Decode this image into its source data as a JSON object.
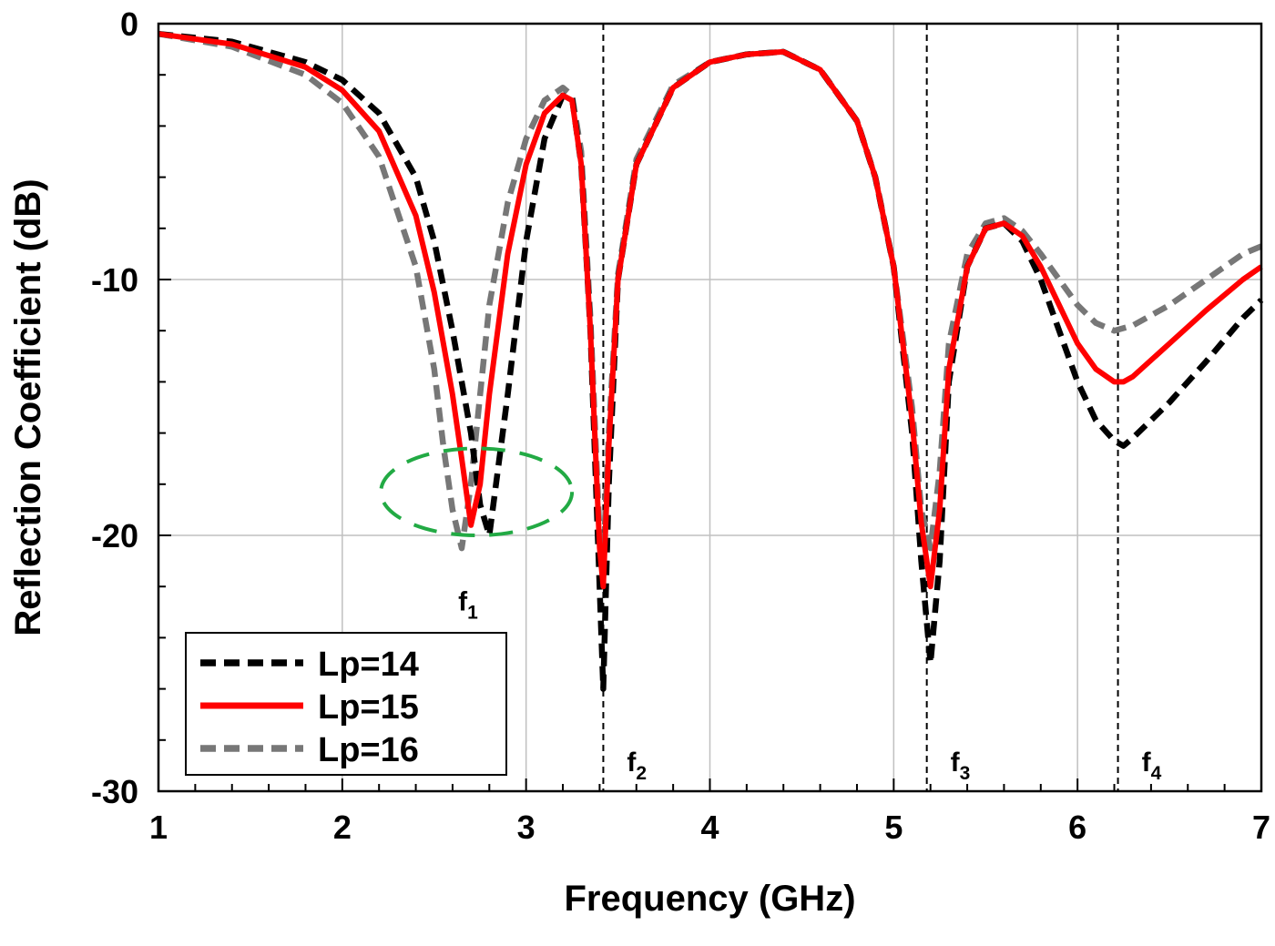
{
  "chart_data": {
    "type": "line",
    "title": "",
    "xlabel": "Frequency (GHz)",
    "ylabel": "Reflection Coefficient (dB)",
    "xlim": [
      1,
      7
    ],
    "ylim": [
      -30,
      0
    ],
    "xticks": [
      1,
      2,
      3,
      4,
      5,
      6,
      7
    ],
    "yticks": [
      0,
      -10,
      -20,
      -30
    ],
    "xtick_labels": [
      "1",
      "2",
      "3",
      "4",
      "5",
      "6",
      "7"
    ],
    "ytick_labels": [
      "0",
      "-10",
      "-20",
      "-30"
    ],
    "grid": true,
    "legend_position": "bottom-left",
    "series": [
      {
        "name": "Lp=14",
        "color": "#000000",
        "dash": "dashed",
        "x": [
          1.0,
          1.4,
          1.8,
          2.0,
          2.2,
          2.4,
          2.5,
          2.6,
          2.7,
          2.75,
          2.8,
          2.9,
          3.0,
          3.1,
          3.2,
          3.25,
          3.3,
          3.35,
          3.4,
          3.42,
          3.45,
          3.5,
          3.6,
          3.8,
          4.0,
          4.2,
          4.4,
          4.6,
          4.8,
          4.9,
          5.0,
          5.1,
          5.15,
          5.2,
          5.25,
          5.3,
          5.4,
          5.5,
          5.6,
          5.7,
          5.8,
          5.9,
          6.0,
          6.1,
          6.2,
          6.25,
          6.3,
          6.5,
          6.7,
          6.9,
          7.0
        ],
        "y": [
          -0.4,
          -0.7,
          -1.5,
          -2.2,
          -3.5,
          -6.0,
          -8.5,
          -12.0,
          -16.0,
          -18.8,
          -20.0,
          -14.5,
          -8.5,
          -4.5,
          -2.8,
          -2.9,
          -5.5,
          -12.0,
          -22.0,
          -26.0,
          -18.0,
          -10.0,
          -5.5,
          -2.5,
          -1.5,
          -1.2,
          -1.1,
          -1.8,
          -3.8,
          -6.0,
          -9.5,
          -16.0,
          -21.0,
          -25.0,
          -21.0,
          -14.0,
          -9.5,
          -8.0,
          -7.8,
          -8.5,
          -10.0,
          -12.0,
          -14.0,
          -15.5,
          -16.3,
          -16.5,
          -16.2,
          -14.8,
          -13.2,
          -11.5,
          -10.8
        ]
      },
      {
        "name": "Lp=15",
        "color": "#ff0000",
        "dash": "solid",
        "x": [
          1.0,
          1.4,
          1.8,
          2.0,
          2.2,
          2.4,
          2.5,
          2.6,
          2.65,
          2.7,
          2.75,
          2.8,
          2.9,
          3.0,
          3.1,
          3.2,
          3.25,
          3.3,
          3.35,
          3.4,
          3.42,
          3.45,
          3.5,
          3.6,
          3.8,
          4.0,
          4.2,
          4.4,
          4.6,
          4.8,
          4.9,
          5.0,
          5.1,
          5.15,
          5.2,
          5.25,
          5.3,
          5.4,
          5.5,
          5.6,
          5.7,
          5.8,
          5.9,
          6.0,
          6.1,
          6.2,
          6.25,
          6.3,
          6.5,
          6.7,
          6.9,
          7.0
        ],
        "y": [
          -0.4,
          -0.8,
          -1.7,
          -2.6,
          -4.2,
          -7.5,
          -10.5,
          -14.5,
          -17.0,
          -19.6,
          -18.0,
          -14.5,
          -9.0,
          -5.5,
          -3.5,
          -2.8,
          -3.0,
          -5.5,
          -12.0,
          -20.5,
          -22.0,
          -16.5,
          -10.0,
          -5.5,
          -2.5,
          -1.5,
          -1.2,
          -1.1,
          -1.8,
          -3.8,
          -6.0,
          -9.5,
          -15.5,
          -19.5,
          -22.0,
          -19.0,
          -13.5,
          -9.5,
          -8.0,
          -7.8,
          -8.3,
          -9.5,
          -11.0,
          -12.5,
          -13.5,
          -14.0,
          -14.0,
          -13.8,
          -12.5,
          -11.2,
          -10.0,
          -9.5
        ]
      },
      {
        "name": "Lp=16",
        "color": "#777777",
        "dash": "dashed",
        "x": [
          1.0,
          1.4,
          1.8,
          2.0,
          2.2,
          2.4,
          2.5,
          2.55,
          2.6,
          2.65,
          2.7,
          2.75,
          2.8,
          2.9,
          3.0,
          3.1,
          3.2,
          3.25,
          3.3,
          3.35,
          3.4,
          3.42,
          3.45,
          3.5,
          3.6,
          3.8,
          4.0,
          4.2,
          4.4,
          4.6,
          4.8,
          4.9,
          5.0,
          5.1,
          5.15,
          5.2,
          5.25,
          5.3,
          5.4,
          5.5,
          5.6,
          5.7,
          5.8,
          5.9,
          6.0,
          6.1,
          6.2,
          6.3,
          6.5,
          6.7,
          6.9,
          7.0
        ],
        "y": [
          -0.4,
          -0.9,
          -2.0,
          -3.1,
          -5.2,
          -9.5,
          -13.5,
          -16.5,
          -19.0,
          -20.5,
          -18.0,
          -14.5,
          -11.0,
          -7.0,
          -4.5,
          -3.0,
          -2.5,
          -2.8,
          -5.0,
          -11.5,
          -20.0,
          -21.0,
          -16.0,
          -9.8,
          -5.3,
          -2.4,
          -1.5,
          -1.2,
          -1.1,
          -1.8,
          -3.8,
          -6.0,
          -9.5,
          -15.0,
          -19.0,
          -20.5,
          -17.5,
          -12.5,
          -9.0,
          -7.8,
          -7.6,
          -8.1,
          -9.0,
          -10.0,
          -11.0,
          -11.7,
          -12.0,
          -11.8,
          -11.0,
          -10.0,
          -9.0,
          -8.7
        ]
      }
    ],
    "vlines": [
      {
        "x": 3.42,
        "label": "f",
        "sub": "2"
      },
      {
        "x": 5.18,
        "label": "f",
        "sub": "3"
      },
      {
        "x": 6.22,
        "label": "f",
        "sub": "4"
      }
    ],
    "annotations": [
      {
        "label": "f",
        "sub": "1",
        "x": 2.7,
        "y": -22.5
      }
    ],
    "highlight_ellipse": {
      "color": "#22aa44",
      "cx": 2.73,
      "cy": -18.3,
      "rx": 0.52,
      "ry": 1.7
    }
  }
}
